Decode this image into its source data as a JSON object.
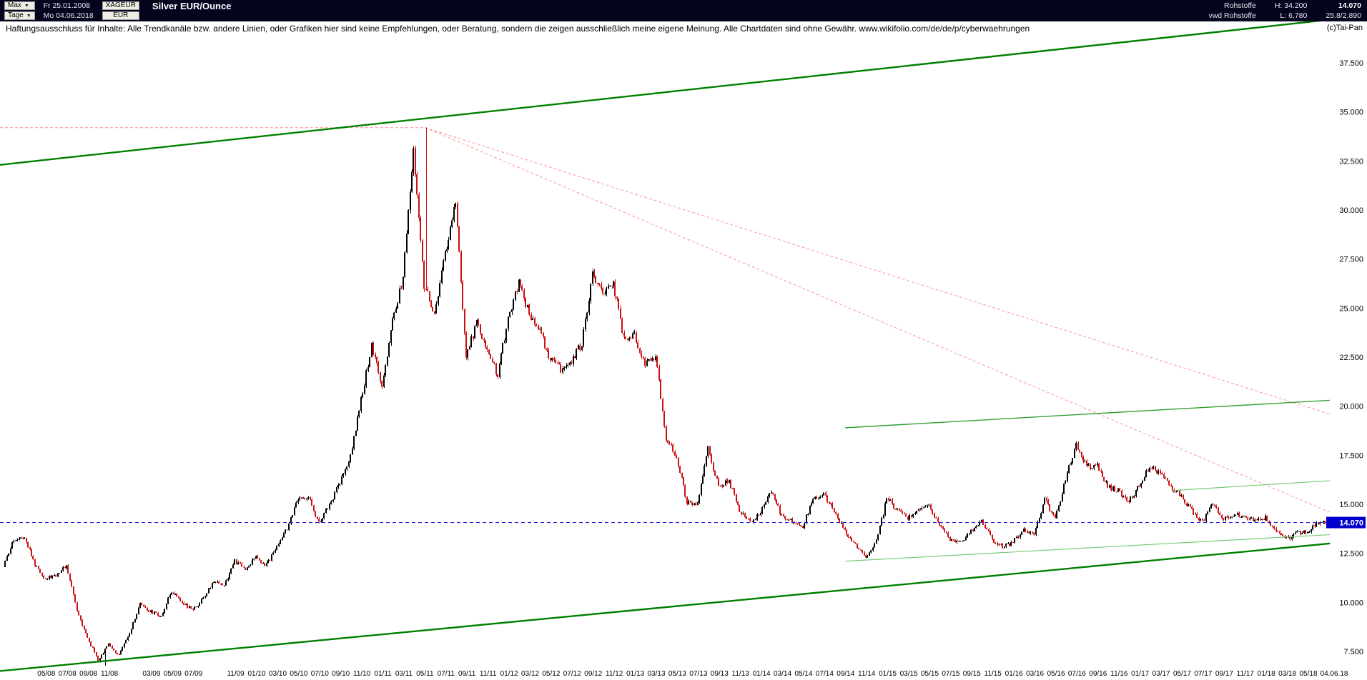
{
  "header": {
    "range_select": "Max",
    "period_select": "Tage",
    "start_date": "Fr 25.01.2008",
    "end_date": "Mo 04.06.2018",
    "symbol": "XAGEUR",
    "currency": "EUR",
    "title": "Silver EUR/Ounce",
    "category": "Rohstoffe",
    "source": "vwd Rohstoffe",
    "high": "H: 34.200",
    "low": "L: 6.780",
    "last": "14.070",
    "change_info": "25.8/2.890"
  },
  "annotations": {
    "disclaimer": "Haftungsausschluss für Inhalte: Alle Trendkanäle bzw. andere Linien, oder Grafiken hier sind keine Empfehlungen, oder Beratung, sondern die zeigen ausschließlich meine eigene Meinung. Alle Chartdaten sind ohne Gewähr.  www.wikifolio.com/de/de/p/cyberwaehrungen",
    "copyright": "(c)Tai-Pan"
  },
  "chart_data": {
    "type": "candlestick",
    "title": "Silver EUR/Ounce",
    "interval": "daily candles, monthly close values approximated from chart",
    "x_start": "2008-01",
    "x_end": "2018-06",
    "period_high": 34.2,
    "period_low": 6.78,
    "high_month": "2011-05",
    "low_month": "2008-10",
    "last": 14.07,
    "y_ticks": [
      37.5,
      35,
      32.5,
      30,
      27.5,
      25,
      22.5,
      20,
      17.5,
      15,
      12.5,
      10,
      7.5
    ],
    "y_tick_labels": [
      "37.500",
      "35.000",
      "32.500",
      "30.000",
      "27.500",
      "25.000",
      "22.500",
      "20.000",
      "17.500",
      "15.000",
      "12.500",
      "10.000",
      "7.500"
    ],
    "x_tick_labels": [
      "05/08",
      "07/08",
      "09/08",
      "11/08",
      "03/09",
      "05/09",
      "07/09",
      "11/09",
      "01/10",
      "03/10",
      "05/10",
      "07/10",
      "09/10",
      "11/10",
      "01/11",
      "03/11",
      "05/11",
      "07/11",
      "09/11",
      "11/11",
      "01/12",
      "03/12",
      "05/12",
      "07/12",
      "09/12",
      "11/12",
      "01/13",
      "03/13",
      "05/13",
      "07/13",
      "09/13",
      "11/13",
      "01/14",
      "03/14",
      "05/14",
      "07/14",
      "09/14",
      "11/14",
      "01/15",
      "03/15",
      "05/15",
      "07/15",
      "09/15",
      "11/15",
      "01/16",
      "03/16",
      "05/16",
      "07/16",
      "09/16",
      "11/16",
      "01/17",
      "03/17",
      "05/17",
      "07/17",
      "09/17",
      "11/17",
      "01/18",
      "03/18",
      "05/18"
    ],
    "x_final_label": "04.06.18",
    "monthly_closes": [
      11.8,
      13.2,
      13.4,
      11.9,
      11.2,
      11.4,
      11.9,
      9.6,
      8.2,
      7.0,
      7.9,
      7.3,
      8.4,
      9.9,
      9.5,
      9.3,
      10.6,
      10.0,
      9.6,
      10.2,
      11.1,
      10.9,
      12.1,
      11.7,
      12.3,
      11.9,
      12.9,
      13.8,
      15.2,
      15.4,
      14.0,
      15.0,
      16.1,
      17.5,
      20.3,
      23.1,
      20.9,
      24.3,
      26.6,
      33.2,
      26.2,
      24.6,
      27.8,
      30.3,
      22.4,
      24.3,
      22.8,
      21.6,
      24.5,
      26.3,
      24.7,
      23.9,
      22.4,
      21.9,
      22.3,
      23.2,
      26.8,
      25.6,
      26.2,
      23.4,
      23.6,
      22.1,
      22.6,
      18.4,
      17.4,
      15.1,
      15.0,
      17.8,
      15.9,
      16.2,
      14.7,
      14.1,
      14.6,
      15.7,
      14.4,
      14.1,
      13.9,
      15.3,
      15.5,
      14.7,
      13.6,
      12.9,
      12.2,
      13.1,
      15.3,
      14.7,
      14.3,
      14.7,
      14.9,
      14.0,
      13.2,
      13.1,
      13.6,
      14.1,
      13.2,
      12.8,
      13.1,
      13.7,
      13.4,
      15.3,
      14.2,
      16.3,
      18.1,
      16.9,
      17.0,
      15.9,
      15.7,
      15.1,
      16.0,
      16.9,
      16.6,
      15.9,
      15.4,
      14.7,
      14.1,
      15.0,
      14.2,
      14.5,
      14.3,
      14.2,
      14.3,
      13.6,
      13.2,
      13.5,
      13.6,
      14.07
    ],
    "trendlines": [
      {
        "name": "upper-channel",
        "color": "#008000",
        "width": 2.4,
        "from_month": "2008-01",
        "from_price": 32.3,
        "to_month": "2018-07",
        "to_price": 39.7
      },
      {
        "name": "lower-channel",
        "color": "#008000",
        "width": 2.4,
        "from_month": "2008-01",
        "from_price": 6.5,
        "to_month": "2018-07",
        "to_price": 13.0
      },
      {
        "name": "mid-channel-resistance",
        "color": "#33a133",
        "width": 1.4,
        "from_month": "2014-09",
        "from_price": 18.9,
        "to_month": "2018-07",
        "to_price": 20.3
      },
      {
        "name": "minor-support",
        "color": "#77cc77",
        "width": 1.2,
        "from_month": "2014-09",
        "from_price": 12.1,
        "to_month": "2018-07",
        "to_price": 13.45
      },
      {
        "name": "minor-resistance",
        "color": "#77cc77",
        "width": 1.2,
        "from_month": "2017-04",
        "from_price": 15.7,
        "to_month": "2018-07",
        "to_price": 16.2
      }
    ],
    "fan_lines": [
      {
        "name": "fan-steep",
        "color": "#ff9e9e",
        "from_month": "2011-05",
        "from_price": 34.2,
        "to_month": "2018-07",
        "to_price": 14.6
      },
      {
        "name": "fan-shallow",
        "color": "#ff9e9e",
        "from_month": "2011-05",
        "from_price": 34.2,
        "to_month": "2018-07",
        "to_price": 19.6
      }
    ],
    "horizontal_lines": [
      {
        "name": "period-high-line",
        "price": 34.2,
        "color": "#ff9e9e",
        "from_month": "2008-01",
        "to_month": "2011-05",
        "tag": null
      },
      {
        "name": "last-price-line",
        "price": 14.07,
        "color": "#2424dd",
        "from_month": "2008-01",
        "to_month": "2018-07",
        "tag": "14.070"
      }
    ],
    "candle_up_color": "#000000",
    "candle_down_color": "#cc1111",
    "tag_bg_color": "#0000cd",
    "legend": "none",
    "grid": "off"
  }
}
